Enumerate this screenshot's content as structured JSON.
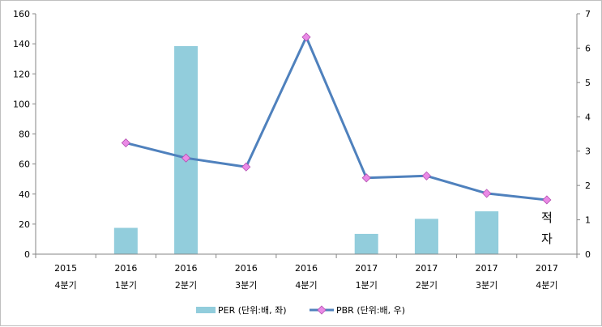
{
  "chart_data": {
    "type": "bar",
    "categories": [
      [
        "2015",
        "4분기"
      ],
      [
        "2016",
        "1분기"
      ],
      [
        "2016",
        "2분기"
      ],
      [
        "2016",
        "3분기"
      ],
      [
        "2016",
        "4분기"
      ],
      [
        "2017",
        "1분기"
      ],
      [
        "2017",
        "2분기"
      ],
      [
        "2017",
        "3분기"
      ],
      [
        "2017",
        "4분기"
      ]
    ],
    "series": [
      {
        "name": "PER (단위:배, 좌)",
        "type": "bar",
        "axis": "left",
        "values": [
          null,
          17.5,
          138.5,
          null,
          null,
          13.5,
          23.5,
          28.5,
          null
        ]
      },
      {
        "name": "PBR (단위:배, 우)",
        "type": "line",
        "axis": "right",
        "values": [
          null,
          3.24,
          2.8,
          2.54,
          6.32,
          2.22,
          2.28,
          1.77,
          1.58
        ]
      }
    ],
    "y_left": {
      "range": [
        0,
        160
      ],
      "ticks": [
        "0",
        "20",
        "40",
        "60",
        "80",
        "100",
        "120",
        "140",
        "160"
      ]
    },
    "y_right": {
      "range": [
        0,
        7
      ],
      "ticks": [
        "0",
        "1",
        "2",
        "3",
        "4",
        "5",
        "6",
        "7"
      ]
    },
    "annotation": {
      "text": [
        "적",
        "자"
      ],
      "category_index": 8
    },
    "grid": false,
    "legend": "bottom",
    "colors": {
      "bar": "#92cddc",
      "line": "#4f81bd",
      "marker": "#ea8ae6",
      "axis": "#868686"
    }
  }
}
